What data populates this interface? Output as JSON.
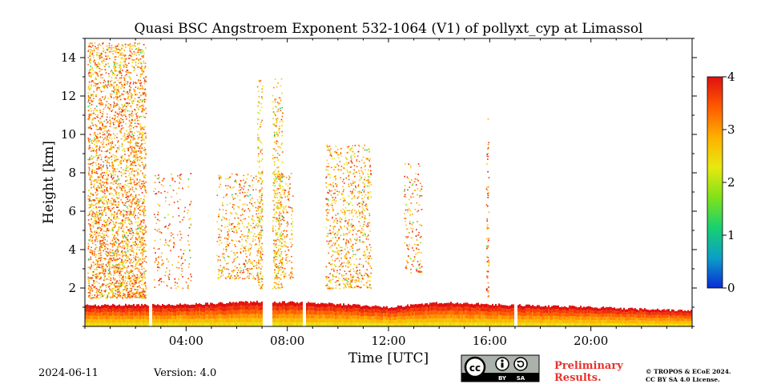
{
  "chart_data": {
    "type": "heatmap",
    "title": "Quasi BSC Angstroem Exponent 532-1064 (V1) of pollyxt_cyp at Limassol",
    "xlabel": "Time [UTC]",
    "ylabel": "Height [km]",
    "xlim": [
      0,
      24
    ],
    "ylim": [
      0,
      15
    ],
    "x_ticks": [
      4,
      8,
      12,
      16,
      20
    ],
    "x_tick_labels": [
      "04:00",
      "08:00",
      "12:00",
      "16:00",
      "20:00"
    ],
    "y_ticks": [
      2,
      4,
      6,
      8,
      10,
      12,
      14
    ],
    "y_tick_labels": [
      "2",
      "4",
      "6",
      "8",
      "10",
      "12",
      "14"
    ],
    "colorbar": {
      "min": 0,
      "max": 4,
      "ticks": [
        0,
        1,
        2,
        3,
        4
      ],
      "tick_labels": [
        "0",
        "1",
        "2",
        "3",
        "4"
      ],
      "colors": [
        "#0a2bd6",
        "#0b9fc8",
        "#18d070",
        "#7fe21a",
        "#e8e810",
        "#ffb000",
        "#ff5a00",
        "#e01010"
      ]
    },
    "boundary_layer": {
      "description_values_km": [
        [
          0,
          1.1
        ],
        [
          4,
          1.15
        ],
        [
          7,
          1.3
        ],
        [
          9.5,
          1.2
        ],
        [
          12,
          1.0
        ],
        [
          14,
          1.25
        ],
        [
          16,
          1.15
        ],
        [
          20,
          1.0
        ],
        [
          24,
          0.8
        ]
      ]
    },
    "gaps_hours": [
      [
        2.5,
        2.62
      ],
      [
        7.0,
        7.4
      ],
      [
        8.6,
        8.7
      ],
      [
        16.95,
        17.05
      ]
    ],
    "aerosol_regions": [
      {
        "t0": 0.1,
        "t1": 2.4,
        "h0": 1.5,
        "h1": 14.8,
        "value": 3.1,
        "density": 0.55
      },
      {
        "t0": 2.7,
        "t1": 4.2,
        "h0": 2.0,
        "h1": 8.0,
        "value": 3.3,
        "density": 0.12
      },
      {
        "t0": 5.2,
        "t1": 8.2,
        "h0": 2.5,
        "h1": 8.0,
        "value": 3.0,
        "density": 0.25
      },
      {
        "t0": 6.8,
        "t1": 7.8,
        "h0": 2.0,
        "h1": 13.0,
        "value": 2.8,
        "density": 0.35
      },
      {
        "t0": 9.5,
        "t1": 11.3,
        "h0": 2.0,
        "h1": 9.5,
        "value": 3.0,
        "density": 0.3
      },
      {
        "t0": 12.6,
        "t1": 13.3,
        "h0": 2.8,
        "h1": 8.5,
        "value": 3.2,
        "density": 0.2
      },
      {
        "t0": 15.85,
        "t1": 15.95,
        "h0": 1.5,
        "h1": 11.0,
        "value": 3.4,
        "density": 0.35
      }
    ]
  },
  "footer": {
    "date": "2024-06-11",
    "version": "Version: 4.0",
    "preliminary_line1": "Preliminary",
    "preliminary_line2": "Results.",
    "copyright_line1": "© TROPOS & ECoE 2024.",
    "copyright_line2": "CC BY SA 4.0 License.",
    "license_badge": {
      "by": "BY",
      "sa": "SA",
      "icon": "creative-commons-icon"
    }
  }
}
